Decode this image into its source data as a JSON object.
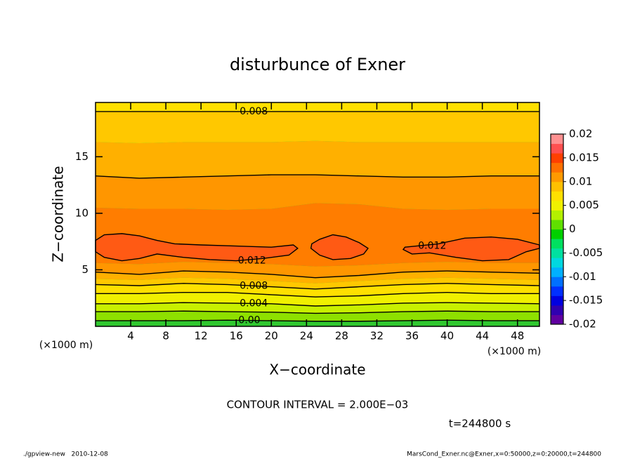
{
  "chart_data": {
    "type": "contour",
    "title": "disturbunce of Exner",
    "x_label": "X−coordinate",
    "y_label": "Z−coordinate",
    "x_unit": "(×1000 m)",
    "xlim": [
      0,
      50.5
    ],
    "ylim": [
      0,
      19.8
    ],
    "xticks": [
      4,
      8,
      12,
      16,
      20,
      24,
      28,
      32,
      36,
      40,
      44,
      48
    ],
    "yticks": [
      5,
      10,
      15
    ],
    "x": [
      0,
      5,
      10,
      15,
      20,
      25,
      30,
      35,
      40,
      45,
      50.5
    ],
    "base_fill": "#30c830",
    "contours": [
      {
        "level": 0,
        "label": "0.00",
        "line": true,
        "fill": "#8ee000",
        "z": [
          0.5,
          0.5,
          0.5,
          0.55,
          0.5,
          0.45,
          0.45,
          0.5,
          0.55,
          0.5,
          0.5
        ]
      },
      {
        "level": 0.002,
        "line": true,
        "fill": "#c8f000",
        "z": [
          1.3,
          1.3,
          1.35,
          1.3,
          1.25,
          1.15,
          1.2,
          1.3,
          1.35,
          1.3,
          1.3
        ]
      },
      {
        "level": 0.004,
        "line": true,
        "fill": "#f0f000",
        "z": [
          2.0,
          2.0,
          2.1,
          2.05,
          2.0,
          1.8,
          1.9,
          2.05,
          2.1,
          2.05,
          2.0
        ]
      },
      {
        "level": 0.006,
        "line": true,
        "fill": "#ffe000",
        "z": [
          2.9,
          2.9,
          3.0,
          3.0,
          2.8,
          2.6,
          2.7,
          2.9,
          3.0,
          2.9,
          2.9
        ]
      },
      {
        "level": 0.008,
        "line": true,
        "fill": "#ffc800",
        "z": [
          3.7,
          3.6,
          3.8,
          3.7,
          3.5,
          3.3,
          3.5,
          3.7,
          3.8,
          3.7,
          3.6
        ]
      },
      {
        "level": 0.009,
        "line": false,
        "fill": "#ffb000",
        "z": [
          4.2,
          4.1,
          4.3,
          4.2,
          4.0,
          3.8,
          4.0,
          4.2,
          4.3,
          4.2,
          4.1
        ]
      },
      {
        "level": 0.01,
        "line": true,
        "fill": "#ff9600",
        "z": [
          4.8,
          4.6,
          4.9,
          4.8,
          4.6,
          4.3,
          4.5,
          4.8,
          4.9,
          4.8,
          4.7
        ]
      },
      {
        "level": 0.011,
        "line": false,
        "fill": "#ff7d00",
        "z": [
          5.6,
          5.5,
          5.7,
          5.6,
          5.5,
          5.3,
          5.4,
          5.6,
          5.7,
          5.6,
          5.6
        ]
      },
      {
        "level": 0.011,
        "line": false,
        "fill": "#ff9600",
        "z": [
          10.5,
          10.4,
          10.4,
          10.3,
          10.4,
          10.9,
          10.8,
          10.4,
          10.3,
          10.4,
          10.4
        ]
      },
      {
        "level": 0.01,
        "line": true,
        "fill": "#ffb000",
        "z": [
          13.3,
          13.1,
          13.2,
          13.3,
          13.4,
          13.4,
          13.3,
          13.2,
          13.2,
          13.3,
          13.3
        ]
      },
      {
        "level": 0.009,
        "line": false,
        "fill": "#ffc800",
        "z": [
          16.3,
          16.2,
          16.3,
          16.3,
          16.3,
          16.4,
          16.3,
          16.3,
          16.3,
          16.3,
          16.3
        ]
      },
      {
        "level": 0.008,
        "line": true,
        "fill": "#ffe000",
        "z": [
          19.0,
          19.0,
          19.0,
          19.0,
          19.0,
          19.0,
          19.0,
          19.0,
          19.0,
          19.0,
          19.0
        ]
      }
    ],
    "blobs": [
      {
        "level": 0.012,
        "fill": "#ff5a14",
        "x": [
          0,
          1,
          3,
          5,
          7,
          10,
          13,
          16,
          19,
          22,
          23,
          22.5,
          20,
          16,
          12,
          9,
          7,
          5,
          3,
          1,
          0
        ],
        "z": [
          6.6,
          6.1,
          5.8,
          6.0,
          6.4,
          6.1,
          5.9,
          5.8,
          6.0,
          6.3,
          6.9,
          7.2,
          7.0,
          7.1,
          7.2,
          7.3,
          7.6,
          8.0,
          8.2,
          8.1,
          7.6
        ]
      },
      {
        "level": 0.012,
        "fill": "#ff5a14",
        "x": [
          24.5,
          25.5,
          27,
          29,
          30.5,
          31,
          30,
          28.5,
          27,
          25.5,
          24.6
        ],
        "z": [
          6.9,
          6.3,
          5.9,
          6.0,
          6.4,
          6.9,
          7.4,
          7.9,
          8.1,
          7.7,
          7.3
        ]
      },
      {
        "level": 0.012,
        "fill": "#ff5a14",
        "x": [
          35,
          36,
          38,
          41,
          44,
          47,
          49,
          50.5,
          50.5,
          48,
          45,
          42,
          39,
          36.5,
          35.2
        ],
        "z": [
          6.8,
          6.4,
          6.5,
          6.1,
          5.8,
          5.9,
          6.6,
          6.9,
          7.2,
          7.7,
          7.9,
          7.8,
          7.3,
          7.1,
          7.0
        ]
      }
    ],
    "colorbar": {
      "lim": [
        -0.02,
        0.02
      ],
      "ticks": [
        0.02,
        0.015,
        0.01,
        0.005,
        0,
        -0.005,
        -0.01,
        -0.015,
        -0.02
      ],
      "colors": [
        "#6000a0",
        "#3000b0",
        "#0000e0",
        "#0030ff",
        "#0070ff",
        "#00b0ff",
        "#00d8e0",
        "#00e0a0",
        "#00e060",
        "#00d000",
        "#60e000",
        "#b4f000",
        "#f0f000",
        "#ffe000",
        "#ffc000",
        "#ff9a00",
        "#ff7000",
        "#ff4000",
        "#ff5050",
        "#ff9090"
      ]
    },
    "contour_interval": "CONTOUR INTERVAL = 2.000E−03",
    "time_label": "t=244800 s",
    "footer_left": "./gpview-new   2010-12-08",
    "footer_right": "MarsCond_Exner.nc@Exner,x=0:50000,z=0:20000,t=244800"
  }
}
